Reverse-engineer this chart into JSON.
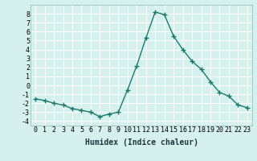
{
  "x": [
    0,
    1,
    2,
    3,
    4,
    5,
    6,
    7,
    8,
    9,
    10,
    11,
    12,
    13,
    14,
    15,
    16,
    17,
    18,
    19,
    20,
    21,
    22,
    23
  ],
  "y": [
    -1.5,
    -1.7,
    -2.0,
    -2.2,
    -2.6,
    -2.8,
    -3.0,
    -3.5,
    -3.2,
    -3.0,
    -0.5,
    2.2,
    5.3,
    8.2,
    7.9,
    5.5,
    4.0,
    2.7,
    1.8,
    0.4,
    -0.8,
    -1.2,
    -2.2,
    -2.5
  ],
  "line_color": "#1a7a6e",
  "marker": "+",
  "markersize": 4,
  "linewidth": 1.0,
  "xlabel": "Humidex (Indice chaleur)",
  "xlabel_fontsize": 7,
  "tick_fontsize": 6,
  "xlim": [
    -0.5,
    23.5
  ],
  "ylim": [
    -4.5,
    9.0
  ],
  "yticks": [
    -4,
    -3,
    -2,
    -1,
    0,
    1,
    2,
    3,
    4,
    5,
    6,
    7,
    8
  ],
  "xticks": [
    0,
    1,
    2,
    3,
    4,
    5,
    6,
    7,
    8,
    9,
    10,
    11,
    12,
    13,
    14,
    15,
    16,
    17,
    18,
    19,
    20,
    21,
    22,
    23
  ],
  "bg_color": "#d6f0ee",
  "grid_color": "#ffffff",
  "grid_linewidth": 0.7,
  "spine_color": "#8ab8b4"
}
